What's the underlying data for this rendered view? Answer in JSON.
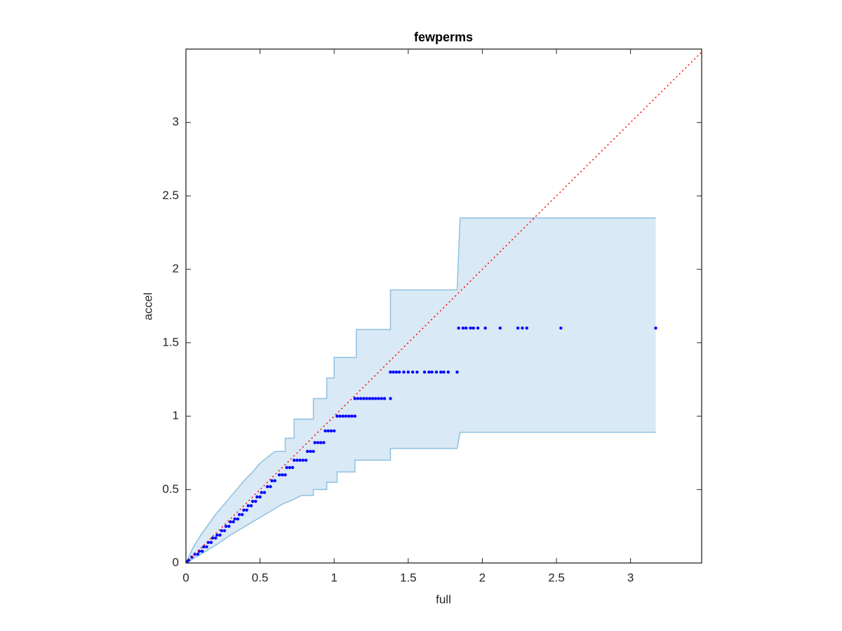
{
  "chart_data": {
    "type": "scatter",
    "title": "fewperms",
    "x_label": "full",
    "y_label": "accel",
    "xlim": [
      0,
      3.48
    ],
    "ylim": [
      0,
      3.5
    ],
    "xticks": [
      0,
      0.5,
      1,
      1.5,
      2,
      2.5,
      3
    ],
    "yticks": [
      0,
      0.5,
      1,
      1.5,
      2,
      2.5,
      3
    ],
    "grid": false,
    "band": {
      "color": "#8fc1df",
      "fill": "#d9e9f5",
      "upper": {
        "x": [
          0,
          0.05,
          0.1,
          0.15,
          0.2,
          0.25,
          0.3,
          0.35,
          0.4,
          0.45,
          0.5,
          0.55,
          0.6,
          0.67,
          0.67,
          0.73,
          0.73,
          0.86,
          0.86,
          0.95,
          0.95,
          1.0,
          1.0,
          1.15,
          1.15,
          1.38,
          1.38,
          1.83,
          1.85,
          3.17
        ],
        "y": [
          0,
          0.11,
          0.19,
          0.26,
          0.33,
          0.39,
          0.45,
          0.51,
          0.57,
          0.62,
          0.68,
          0.72,
          0.76,
          0.76,
          0.85,
          0.85,
          0.98,
          0.98,
          1.12,
          1.12,
          1.26,
          1.26,
          1.4,
          1.4,
          1.59,
          1.59,
          1.86,
          1.86,
          2.35,
          2.35
        ]
      },
      "lower": {
        "x": [
          0,
          0.1,
          0.2,
          0.3,
          0.4,
          0.5,
          0.6,
          0.65,
          0.72,
          0.78,
          0.86,
          0.86,
          0.95,
          0.95,
          1.02,
          1.02,
          1.14,
          1.14,
          1.38,
          1.38,
          1.83,
          1.85,
          3.17
        ],
        "y": [
          0,
          0.06,
          0.12,
          0.19,
          0.25,
          0.31,
          0.37,
          0.4,
          0.43,
          0.46,
          0.46,
          0.5,
          0.5,
          0.55,
          0.55,
          0.62,
          0.62,
          0.7,
          0.7,
          0.78,
          0.78,
          0.89,
          0.89
        ]
      }
    },
    "reference_line": {
      "color": "#ff0000",
      "x": [
        0,
        3.48
      ],
      "y": [
        0,
        3.48
      ]
    },
    "series": [
      {
        "color": "#0000ff",
        "x": [
          1.84,
          1.87,
          1.89,
          1.92,
          1.94,
          1.97,
          2.02,
          2.12,
          2.24,
          2.27,
          2.3,
          2.53,
          3.17,
          1.38,
          1.4,
          1.42,
          1.44,
          1.47,
          1.5,
          1.53,
          1.56,
          1.61,
          1.64,
          1.66,
          1.69,
          1.72,
          1.74,
          1.77,
          1.83,
          1.14,
          1.16,
          1.18,
          1.2,
          1.22,
          1.24,
          1.26,
          1.28,
          1.3,
          1.32,
          1.34,
          1.38,
          1.02,
          1.04,
          1.06,
          1.08,
          1.1,
          1.12,
          1.14,
          0.94,
          0.96,
          0.98,
          1.0,
          0.87,
          0.89,
          0.91,
          0.93,
          0.82,
          0.84,
          0.86,
          0.73,
          0.75,
          0.77,
          0.79,
          0.81,
          0.68,
          0.7,
          0.72,
          0.63,
          0.65,
          0.67,
          0.58,
          0.6,
          0.55,
          0.57,
          0.51,
          0.53,
          0.48,
          0.5,
          0.45,
          0.47,
          0.42,
          0.44,
          0.39,
          0.41,
          0.36,
          0.38,
          0.33,
          0.35,
          0.3,
          0.32,
          0.27,
          0.29,
          0.24,
          0.26,
          0.21,
          0.23,
          0.18,
          0.2,
          0.15,
          0.17,
          0.12,
          0.14,
          0.09,
          0.11,
          0.06,
          0.08,
          0.04,
          0.02,
          0.01
        ],
        "values": [
          1.6,
          1.6,
          1.6,
          1.6,
          1.6,
          1.6,
          1.6,
          1.6,
          1.6,
          1.6,
          1.6,
          1.6,
          1.6,
          1.3,
          1.3,
          1.3,
          1.3,
          1.3,
          1.3,
          1.3,
          1.3,
          1.3,
          1.3,
          1.3,
          1.3,
          1.3,
          1.3,
          1.3,
          1.3,
          1.12,
          1.12,
          1.12,
          1.12,
          1.12,
          1.12,
          1.12,
          1.12,
          1.12,
          1.12,
          1.12,
          1.12,
          1.0,
          1.0,
          1.0,
          1.0,
          1.0,
          1.0,
          1.0,
          0.9,
          0.9,
          0.9,
          0.9,
          0.82,
          0.82,
          0.82,
          0.82,
          0.76,
          0.76,
          0.76,
          0.7,
          0.7,
          0.7,
          0.7,
          0.7,
          0.65,
          0.65,
          0.65,
          0.6,
          0.6,
          0.6,
          0.56,
          0.56,
          0.52,
          0.52,
          0.48,
          0.48,
          0.45,
          0.45,
          0.42,
          0.42,
          0.39,
          0.39,
          0.36,
          0.36,
          0.33,
          0.33,
          0.3,
          0.3,
          0.28,
          0.28,
          0.25,
          0.25,
          0.22,
          0.22,
          0.19,
          0.19,
          0.17,
          0.17,
          0.14,
          0.14,
          0.11,
          0.11,
          0.08,
          0.08,
          0.06,
          0.06,
          0.04,
          0.02,
          0.01
        ]
      }
    ]
  }
}
